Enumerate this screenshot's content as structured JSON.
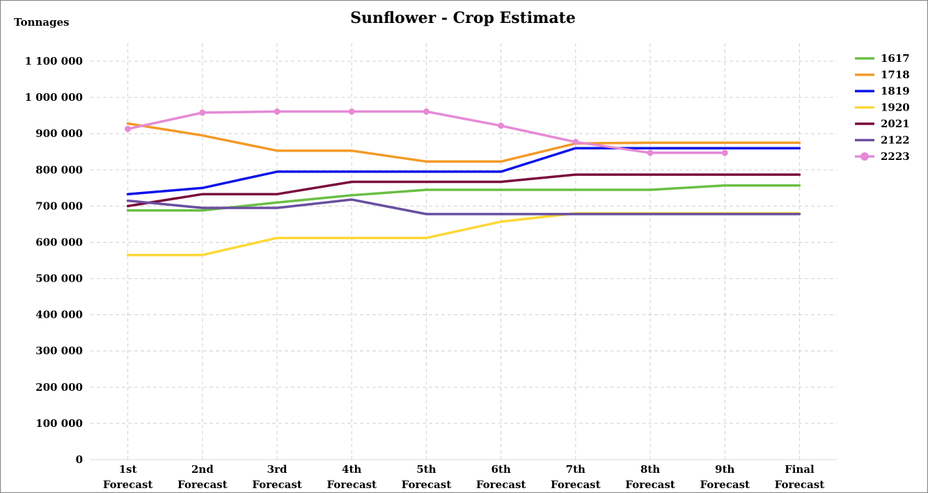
{
  "chart_data": {
    "type": "line",
    "title": "Sunflower - Crop Estimate",
    "ylabel": "Tonnages",
    "xlabel": "",
    "categories": [
      [
        "1st",
        "Forecast"
      ],
      [
        "2nd",
        "Forecast"
      ],
      [
        "3rd",
        "Forecast"
      ],
      [
        "4th",
        "Forecast"
      ],
      [
        "5th",
        "Forecast"
      ],
      [
        "6th",
        "Forecast"
      ],
      [
        "7th",
        "Forecast"
      ],
      [
        "8th",
        "Forecast"
      ],
      [
        "9th",
        "Forecast"
      ],
      [
        "Final",
        "Forecast"
      ]
    ],
    "ylim": [
      0,
      1150000
    ],
    "yticks": [
      0,
      100000,
      200000,
      300000,
      400000,
      500000,
      600000,
      700000,
      800000,
      900000,
      1000000,
      1100000
    ],
    "ytick_labels": [
      "0",
      "100 000",
      "200 000",
      "300 000",
      "400 000",
      "500 000",
      "600 000",
      "700 000",
      "800 000",
      "900 000",
      "1 000 000",
      "1 100 000"
    ],
    "grid": "both, dashed",
    "legend_position": "right",
    "series": [
      {
        "name": "1617",
        "color": "#6abf45",
        "markers": false,
        "values": [
          688000,
          688000,
          710000,
          730000,
          745000,
          745000,
          745000,
          745000,
          757000,
          757000
        ]
      },
      {
        "name": "1718",
        "color": "#f39a27",
        "markers": false,
        "values": [
          928000,
          895000,
          853000,
          853000,
          823000,
          823000,
          873000,
          875000,
          875000,
          875000
        ]
      },
      {
        "name": "1819",
        "color": "#0b12e8",
        "markers": false,
        "values": [
          733000,
          750000,
          795000,
          795000,
          795000,
          795000,
          860000,
          860000,
          860000,
          860000
        ]
      },
      {
        "name": "1920",
        "color": "#fdd835",
        "markers": false,
        "values": [
          565000,
          565000,
          612000,
          612000,
          612000,
          657000,
          680000,
          680000,
          680000,
          680000
        ]
      },
      {
        "name": "2021",
        "color": "#7a0a3c",
        "markers": false,
        "values": [
          700000,
          733000,
          733000,
          767000,
          767000,
          767000,
          787000,
          787000,
          787000,
          787000
        ]
      },
      {
        "name": "2122",
        "color": "#6a4fa0",
        "markers": false,
        "values": [
          715000,
          695000,
          695000,
          718000,
          678000,
          678000,
          678000,
          678000,
          678000,
          678000
        ]
      },
      {
        "name": "2223",
        "color": "#e68ad6",
        "markers": true,
        "values": [
          913000,
          958000,
          961000,
          961000,
          961000,
          922000,
          877000,
          847000,
          847000,
          null
        ]
      }
    ]
  }
}
